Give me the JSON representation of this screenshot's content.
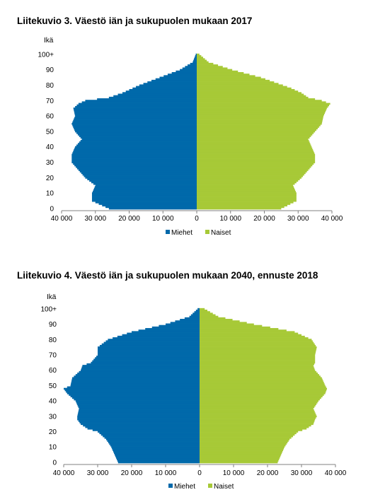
{
  "colors": {
    "men": "#0069aa",
    "women": "#a7c937"
  },
  "chart_data": [
    {
      "type": "bar",
      "orientation": "horizontal",
      "subtype": "population-pyramid",
      "title": "Liitekuvio 3. Väestö iän ja sukupuolen mukaan 2017",
      "ylabel": "Ikä",
      "y_tick_labels": [
        "0",
        "10",
        "20",
        "30",
        "40",
        "50",
        "60",
        "70",
        "80",
        "90",
        "100+"
      ],
      "x_tick_labels": [
        "40 000",
        "30 000",
        "20 000",
        "10 000",
        "0",
        "10 000",
        "20 000",
        "30 000",
        "40 000"
      ],
      "xlim": [
        -40000,
        40000
      ],
      "legend": {
        "placement": "bottom",
        "entries": [
          "Miehet",
          "Naiset"
        ]
      },
      "age_points": [
        0,
        5,
        10,
        15,
        20,
        25,
        30,
        35,
        40,
        45,
        50,
        55,
        60,
        65,
        68,
        70,
        72,
        75,
        78,
        80,
        85,
        90,
        95,
        100
      ],
      "series": [
        {
          "name": "Miehet",
          "values": [
            26000,
            31000,
            31000,
            30000,
            33000,
            35000,
            37000,
            37000,
            36000,
            34000,
            36000,
            37000,
            36000,
            36500,
            35000,
            33000,
            26000,
            22000,
            19000,
            17000,
            11000,
            5000,
            1200,
            300
          ]
        },
        {
          "name": "Naiset",
          "values": [
            25000,
            29500,
            29500,
            28500,
            31000,
            33000,
            35000,
            35000,
            34000,
            33000,
            35000,
            37000,
            37500,
            38500,
            39500,
            37000,
            33000,
            31000,
            28000,
            25500,
            19000,
            10500,
            3500,
            800
          ]
        }
      ]
    },
    {
      "type": "bar",
      "orientation": "horizontal",
      "subtype": "population-pyramid",
      "title": "Liitekuvio 4. Väestö iän ja sukupuolen mukaan 2040, ennuste 2018",
      "ylabel": "Ikä",
      "y_tick_labels": [
        "0",
        "10",
        "20",
        "30",
        "40",
        "50",
        "60",
        "70",
        "80",
        "90",
        "100+"
      ],
      "x_tick_labels": [
        "40 000",
        "30 000",
        "20 000",
        "10 000",
        "0",
        "10 000",
        "20 000",
        "30 000",
        "40 000"
      ],
      "xlim": [
        -40000,
        40000
      ],
      "legend": {
        "placement": "bottom",
        "entries": [
          "Miehet",
          "Naiset"
        ]
      },
      "age_points": [
        0,
        5,
        10,
        15,
        20,
        22,
        25,
        28,
        30,
        35,
        40,
        45,
        48,
        50,
        55,
        60,
        63,
        65,
        70,
        75,
        80,
        85,
        90,
        95,
        100
      ],
      "series": [
        {
          "name": "Miehet",
          "values": [
            24000,
            25000,
            26000,
            27500,
            30000,
            33000,
            35000,
            36000,
            36000,
            35500,
            36500,
            39000,
            40000,
            38000,
            37500,
            35000,
            34500,
            32000,
            30000,
            30000,
            27000,
            20000,
            10000,
            3000,
            600
          ]
        },
        {
          "name": "Naiset",
          "values": [
            23000,
            24000,
            25000,
            26500,
            29000,
            31500,
            33500,
            34000,
            34500,
            33500,
            35000,
            37000,
            37500,
            37000,
            36000,
            34000,
            33500,
            34000,
            34000,
            34500,
            33000,
            28000,
            16000,
            5500,
            1500
          ]
        }
      ]
    }
  ]
}
